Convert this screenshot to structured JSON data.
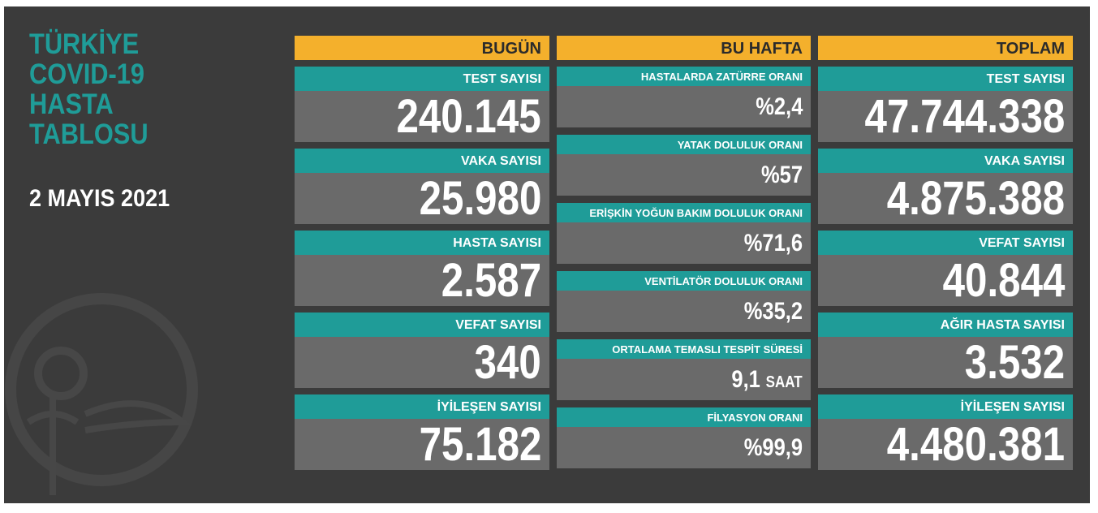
{
  "title": [
    "TÜRKİYE",
    "COVID-19",
    "HASTA",
    "TABLOSU"
  ],
  "date": "2 MAYIS 2021",
  "columns": [
    {
      "header": "BUGÜN",
      "items": [
        {
          "label": "TEST SAYISI",
          "value": "240.145"
        },
        {
          "label": "VAKA SAYISI",
          "value": "25.980"
        },
        {
          "label": "HASTA SAYISI",
          "value": "2.587"
        },
        {
          "label": "VEFAT SAYISI",
          "value": "340"
        },
        {
          "label": "İYİLEŞEN SAYISI",
          "value": "75.182"
        }
      ]
    },
    {
      "header": "BU HAFTA",
      "items": [
        {
          "label": "HASTALARDA ZATÜRRE ORANI",
          "value": "%2,4"
        },
        {
          "label": "YATAK DOLULUK ORANI",
          "value": "%57"
        },
        {
          "label": "ERİŞKİN YOĞUN BAKIM DOLULUK ORANI",
          "value": "%71,6"
        },
        {
          "label": "VENTİLATÖR DOLULUK ORANI",
          "value": "%35,2"
        },
        {
          "label": "ORTALAMA TEMASLI TESPİT SÜRESİ",
          "value": "9,1",
          "unit": "SAAT"
        },
        {
          "label": "FİLYASYON ORANI",
          "value": "%99,9"
        }
      ]
    },
    {
      "header": "TOPLAM",
      "items": [
        {
          "label": "TEST SAYISI",
          "value": "47.744.338"
        },
        {
          "label": "VAKA SAYISI",
          "value": "4.875.388"
        },
        {
          "label": "VEFAT SAYISI",
          "value": "40.844"
        },
        {
          "label": "AĞIR HASTA SAYISI",
          "value": "3.532"
        },
        {
          "label": "İYİLEŞEN SAYISI",
          "value": "4.480.381"
        }
      ]
    }
  ]
}
